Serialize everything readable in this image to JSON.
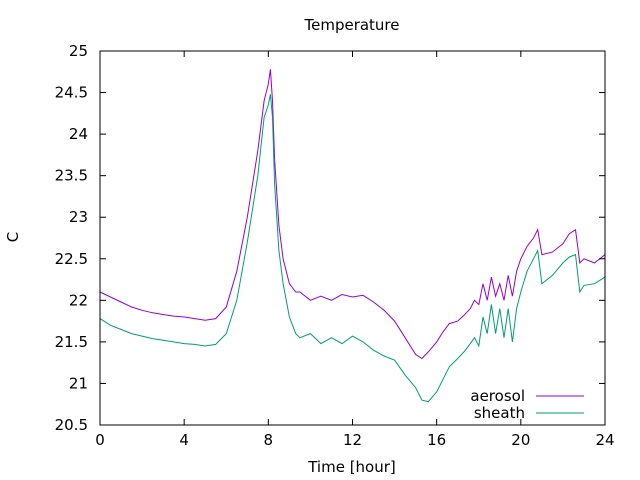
{
  "chart_data": {
    "type": "line",
    "title": "Temperature",
    "xlabel": "Time [hour]",
    "ylabel": "C",
    "xlim": [
      0,
      24
    ],
    "ylim": [
      20.5,
      25
    ],
    "xticks": [
      0,
      4,
      8,
      12,
      16,
      20,
      24
    ],
    "yticks": [
      20.5,
      21,
      21.5,
      22,
      22.5,
      23,
      23.5,
      24,
      24.5,
      25
    ],
    "grid": false,
    "legend": "bottom-right",
    "series": [
      {
        "name": "aerosol",
        "color": "#9400d3",
        "x": [
          0,
          0.5,
          1,
          1.5,
          2,
          2.5,
          3,
          3.5,
          4,
          4.5,
          5,
          5.5,
          6,
          6.5,
          7,
          7.5,
          7.8,
          8.0,
          8.1,
          8.2,
          8.3,
          8.5,
          8.7,
          9.0,
          9.3,
          9.5,
          10,
          10.5,
          11,
          11.5,
          12,
          12.5,
          13,
          13.5,
          14,
          14.5,
          15,
          15.3,
          15.6,
          16,
          16.3,
          16.6,
          17,
          17.3,
          17.6,
          17.8,
          18,
          18.2,
          18.4,
          18.6,
          18.8,
          19,
          19.2,
          19.4,
          19.6,
          19.8,
          20,
          20.3,
          20.6,
          20.8,
          21,
          21.5,
          22,
          22.3,
          22.6,
          22.8,
          23,
          23.5,
          24
        ],
        "values": [
          22.1,
          22.04,
          21.98,
          21.92,
          21.88,
          21.85,
          21.83,
          21.81,
          21.8,
          21.78,
          21.76,
          21.78,
          21.92,
          22.35,
          23.0,
          23.8,
          24.4,
          24.6,
          24.78,
          24.4,
          23.7,
          22.9,
          22.5,
          22.2,
          22.1,
          22.1,
          22.0,
          22.05,
          22.0,
          22.07,
          22.04,
          22.06,
          21.98,
          21.88,
          21.75,
          21.55,
          21.35,
          21.3,
          21.38,
          21.5,
          21.62,
          21.72,
          21.75,
          21.82,
          21.9,
          22.0,
          21.95,
          22.2,
          22.0,
          22.28,
          22.05,
          22.2,
          22.0,
          22.3,
          22.05,
          22.35,
          22.5,
          22.65,
          22.75,
          22.85,
          22.55,
          22.58,
          22.68,
          22.8,
          22.85,
          22.45,
          22.5,
          22.45,
          22.55
        ]
      },
      {
        "name": "sheath",
        "color": "#009e73",
        "x": [
          0,
          0.5,
          1,
          1.5,
          2,
          2.5,
          3,
          3.5,
          4,
          4.5,
          5,
          5.5,
          6,
          6.5,
          7,
          7.5,
          7.8,
          8.0,
          8.1,
          8.2,
          8.3,
          8.5,
          8.7,
          9.0,
          9.3,
          9.5,
          10,
          10.5,
          11,
          11.5,
          12,
          12.5,
          13,
          13.5,
          14,
          14.5,
          15,
          15.3,
          15.6,
          16,
          16.3,
          16.6,
          17,
          17.3,
          17.6,
          17.8,
          18,
          18.2,
          18.4,
          18.6,
          18.8,
          19,
          19.2,
          19.4,
          19.6,
          19.8,
          20,
          20.3,
          20.6,
          20.8,
          21,
          21.5,
          22,
          22.3,
          22.6,
          22.8,
          23,
          23.5,
          24
        ],
        "values": [
          21.78,
          21.7,
          21.65,
          21.6,
          21.57,
          21.54,
          21.52,
          21.5,
          21.48,
          21.47,
          21.45,
          21.47,
          21.6,
          22.0,
          22.7,
          23.5,
          24.2,
          24.35,
          24.48,
          24.2,
          23.4,
          22.6,
          22.2,
          21.8,
          21.6,
          21.55,
          21.6,
          21.48,
          21.55,
          21.48,
          21.57,
          21.5,
          21.4,
          21.33,
          21.28,
          21.1,
          20.95,
          20.8,
          20.78,
          20.9,
          21.05,
          21.2,
          21.3,
          21.38,
          21.48,
          21.55,
          21.45,
          21.8,
          21.6,
          21.95,
          21.6,
          21.9,
          21.55,
          21.9,
          21.5,
          21.9,
          22.1,
          22.35,
          22.5,
          22.6,
          22.2,
          22.3,
          22.45,
          22.52,
          22.55,
          22.1,
          22.18,
          22.2,
          22.28
        ]
      }
    ]
  }
}
